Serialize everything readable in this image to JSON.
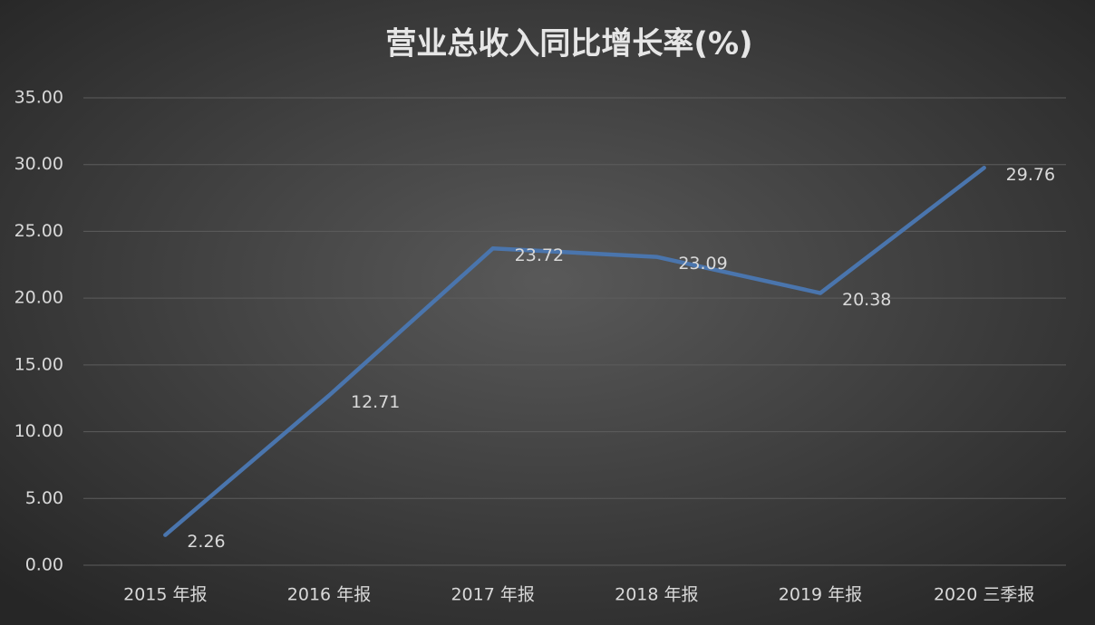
{
  "chart_data": {
    "type": "line",
    "title": "营业总收入同比增长率(%)",
    "categories": [
      "2015 年报",
      "2016 年报",
      "2017 年报",
      "2018 年报",
      "2019 年报",
      "2020 三季报"
    ],
    "values": [
      2.26,
      12.71,
      23.72,
      23.09,
      20.38,
      29.76
    ],
    "color": "#4a75ad",
    "ylim": [
      0,
      35
    ],
    "yticks": [
      {
        "value": 0,
        "label": "0.00"
      },
      {
        "value": 5,
        "label": "5.00"
      },
      {
        "value": 10,
        "label": "10.00"
      },
      {
        "value": 15,
        "label": "15.00"
      },
      {
        "value": 20,
        "label": "20.00"
      },
      {
        "value": 25,
        "label": "25.00"
      },
      {
        "value": 30,
        "label": "30.00"
      },
      {
        "value": 35,
        "label": "35.00"
      }
    ],
    "grid": true
  }
}
